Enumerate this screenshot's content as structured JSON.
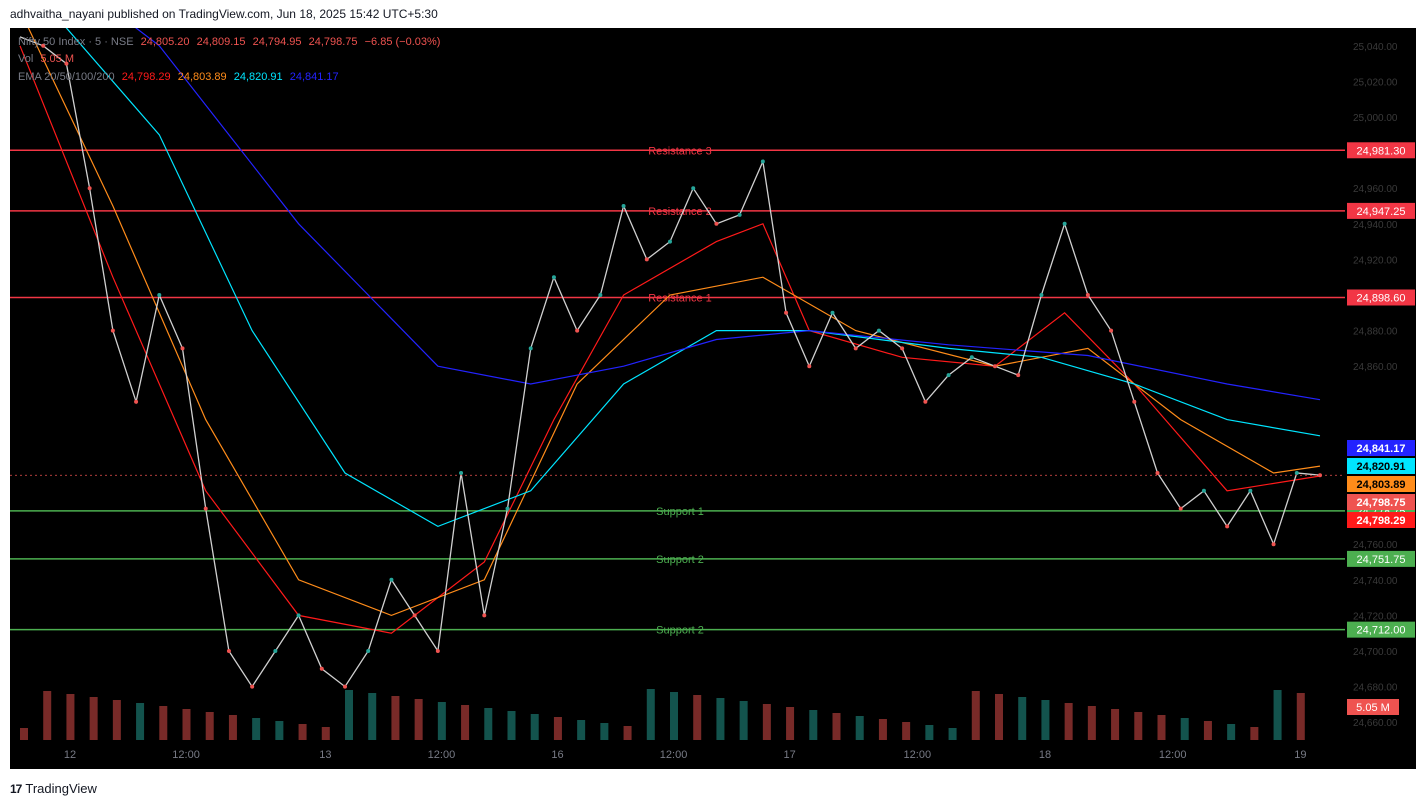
{
  "publisher_line": "adhvaitha_nayani published on TradingView.com, Jun 18, 2025 15:42 UTC+5:30",
  "legend": {
    "symbol": "Nifty 50 Index · 5 · NSE",
    "ohlc": [
      "24,805.20",
      "24,809.15",
      "24,794.95",
      "24,798.75",
      "−6.85 (−0.03%)"
    ],
    "vol_label": "Vol",
    "vol_value": "5.05 M",
    "ema_label": "EMA 20/50/100/200",
    "ema_values": [
      "24,798.29",
      "24,803.89",
      "24,820.91",
      "24,841.17"
    ]
  },
  "footer": {
    "logo": "17",
    "brand": "TradingView"
  },
  "colors": {
    "up": "#26a69a",
    "down": "#ef5350",
    "resistance": "#f23645",
    "support": "#4caf50",
    "ema20": "#ff1a1a",
    "ema50": "#ff8c1a",
    "ema100": "#00e5ff",
    "ema200": "#2323ff"
  },
  "chart_data": {
    "type": "line",
    "title": "Nifty 50 Index · 5 · NSE",
    "y_ticks": [
      "25,040.00",
      "25,020.00",
      "25,000.00",
      "24,960.00",
      "24,940.00",
      "24,920.00",
      "24,880.00",
      "24,860.00",
      "24,760.00",
      "24,740.00",
      "24,720.00",
      "24,700.00",
      "24,680.00",
      "24,660.00"
    ],
    "x_ticks": [
      "12",
      "12:00",
      "13",
      "12:00",
      "16",
      "12:00",
      "17",
      "12:00",
      "18",
      "12:00",
      "19"
    ],
    "levels": [
      {
        "name": "Resistance 3",
        "value": 24981.3,
        "label": "24,981.30",
        "kind": "resistance"
      },
      {
        "name": "Resistance 2",
        "value": 24947.25,
        "label": "24,947.25",
        "kind": "resistance"
      },
      {
        "name": "Resistance 1",
        "value": 24898.6,
        "label": "24,898.60",
        "kind": "resistance"
      },
      {
        "name": "Support 1",
        "value": 24778.75,
        "label": "24,778.75",
        "kind": "support"
      },
      {
        "name": "Support 2",
        "value": 24751.75,
        "label": "24,751.75",
        "kind": "support"
      },
      {
        "name": "Support 2",
        "value": 24712.0,
        "label": "24,712.00",
        "kind": "support"
      }
    ],
    "price_tags": [
      {
        "label": "24,841.17",
        "value": 24841.17,
        "color": "#2323ff"
      },
      {
        "label": "24,820.91",
        "value": 24820.91,
        "color": "#00e5ff"
      },
      {
        "label": "24,803.89",
        "value": 24803.89,
        "color": "#ff8c1a"
      },
      {
        "label": "24,798.75",
        "value": 24798.75,
        "color": "#ef5350"
      },
      {
        "label": "24,798.29",
        "value": 24798.29,
        "color": "#ff1a1a"
      }
    ],
    "volume_tag": "5.05 M",
    "close_series": [
      {
        "x": 0,
        "y": 25045
      },
      {
        "x": 10,
        "y": 25040
      },
      {
        "x": 20,
        "y": 25030
      },
      {
        "x": 30,
        "y": 24960
      },
      {
        "x": 40,
        "y": 24880
      },
      {
        "x": 50,
        "y": 24840
      },
      {
        "x": 60,
        "y": 24900
      },
      {
        "x": 70,
        "y": 24870
      },
      {
        "x": 80,
        "y": 24780
      },
      {
        "x": 90,
        "y": 24700
      },
      {
        "x": 100,
        "y": 24680
      },
      {
        "x": 110,
        "y": 24700
      },
      {
        "x": 120,
        "y": 24720
      },
      {
        "x": 130,
        "y": 24690
      },
      {
        "x": 140,
        "y": 24680
      },
      {
        "x": 150,
        "y": 24700
      },
      {
        "x": 160,
        "y": 24740
      },
      {
        "x": 170,
        "y": 24720
      },
      {
        "x": 180,
        "y": 24700
      },
      {
        "x": 190,
        "y": 24800
      },
      {
        "x": 200,
        "y": 24720
      },
      {
        "x": 210,
        "y": 24780
      },
      {
        "x": 220,
        "y": 24870
      },
      {
        "x": 230,
        "y": 24910
      },
      {
        "x": 240,
        "y": 24880
      },
      {
        "x": 250,
        "y": 24900
      },
      {
        "x": 260,
        "y": 24950
      },
      {
        "x": 270,
        "y": 24920
      },
      {
        "x": 280,
        "y": 24930
      },
      {
        "x": 290,
        "y": 24960
      },
      {
        "x": 300,
        "y": 24940
      },
      {
        "x": 310,
        "y": 24945
      },
      {
        "x": 320,
        "y": 24975
      },
      {
        "x": 330,
        "y": 24890
      },
      {
        "x": 340,
        "y": 24860
      },
      {
        "x": 350,
        "y": 24890
      },
      {
        "x": 360,
        "y": 24870
      },
      {
        "x": 370,
        "y": 24880
      },
      {
        "x": 380,
        "y": 24870
      },
      {
        "x": 390,
        "y": 24840
      },
      {
        "x": 400,
        "y": 24855
      },
      {
        "x": 410,
        "y": 24865
      },
      {
        "x": 420,
        "y": 24860
      },
      {
        "x": 430,
        "y": 24855
      },
      {
        "x": 440,
        "y": 24900
      },
      {
        "x": 450,
        "y": 24940
      },
      {
        "x": 460,
        "y": 24900
      },
      {
        "x": 470,
        "y": 24880
      },
      {
        "x": 480,
        "y": 24840
      },
      {
        "x": 490,
        "y": 24800
      },
      {
        "x": 500,
        "y": 24780
      },
      {
        "x": 510,
        "y": 24790
      },
      {
        "x": 520,
        "y": 24770
      },
      {
        "x": 530,
        "y": 24790
      },
      {
        "x": 540,
        "y": 24760
      },
      {
        "x": 550,
        "y": 24800
      },
      {
        "x": 560,
        "y": 24798.75
      }
    ],
    "ema_series": [
      {
        "name": "EMA 20",
        "values": [
          [
            0,
            25040
          ],
          [
            40,
            24910
          ],
          [
            80,
            24790
          ],
          [
            120,
            24720
          ],
          [
            160,
            24710
          ],
          [
            200,
            24750
          ],
          [
            230,
            24830
          ],
          [
            260,
            24900
          ],
          [
            300,
            24930
          ],
          [
            320,
            24940
          ],
          [
            340,
            24880
          ],
          [
            380,
            24865
          ],
          [
            420,
            24860
          ],
          [
            450,
            24890
          ],
          [
            480,
            24850
          ],
          [
            520,
            24790
          ],
          [
            560,
            24798.29
          ]
        ]
      },
      {
        "name": "EMA 50",
        "values": [
          [
            0,
            25060
          ],
          [
            40,
            24950
          ],
          [
            80,
            24830
          ],
          [
            120,
            24740
          ],
          [
            160,
            24720
          ],
          [
            200,
            24740
          ],
          [
            240,
            24850
          ],
          [
            280,
            24900
          ],
          [
            320,
            24910
          ],
          [
            360,
            24880
          ],
          [
            420,
            24860
          ],
          [
            460,
            24870
          ],
          [
            500,
            24830
          ],
          [
            540,
            24800
          ],
          [
            560,
            24803.89
          ]
        ]
      },
      {
        "name": "EMA 100",
        "values": [
          [
            0,
            25080
          ],
          [
            60,
            24990
          ],
          [
            100,
            24880
          ],
          [
            140,
            24800
          ],
          [
            180,
            24770
          ],
          [
            220,
            24790
          ],
          [
            260,
            24850
          ],
          [
            300,
            24880
          ],
          [
            340,
            24880
          ],
          [
            400,
            24870
          ],
          [
            440,
            24865
          ],
          [
            480,
            24850
          ],
          [
            520,
            24830
          ],
          [
            560,
            24820.91
          ]
        ]
      },
      {
        "name": "EMA 200",
        "values": [
          [
            0,
            25100
          ],
          [
            60,
            25040
          ],
          [
            120,
            24940
          ],
          [
            180,
            24860
          ],
          [
            220,
            24850
          ],
          [
            260,
            24860
          ],
          [
            300,
            24875
          ],
          [
            340,
            24880
          ],
          [
            400,
            24872
          ],
          [
            460,
            24866
          ],
          [
            520,
            24850
          ],
          [
            560,
            24841.17
          ]
        ]
      }
    ],
    "ylim": [
      24650,
      25050
    ],
    "grid": false
  }
}
